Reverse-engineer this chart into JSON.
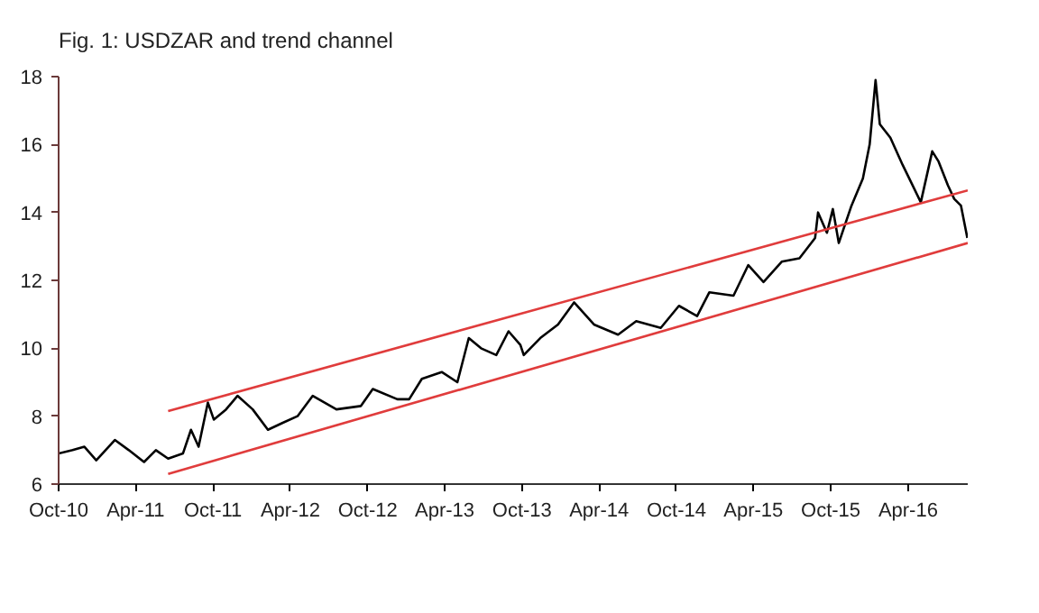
{
  "chart_data": {
    "type": "line",
    "title": "Fig. 1: USDZAR and trend channel",
    "xlim": [
      "2010-10-01",
      "2016-08-20"
    ],
    "ylim": [
      6,
      18
    ],
    "xticks": [
      {
        "value": "2010-10-01",
        "label": "Oct-10"
      },
      {
        "value": "2011-04-01",
        "label": "Apr-11"
      },
      {
        "value": "2011-10-01",
        "label": "Oct-11"
      },
      {
        "value": "2012-04-01",
        "label": "Apr-12"
      },
      {
        "value": "2012-10-01",
        "label": "Oct-12"
      },
      {
        "value": "2013-04-01",
        "label": "Apr-13"
      },
      {
        "value": "2013-10-01",
        "label": "Oct-13"
      },
      {
        "value": "2014-04-01",
        "label": "Apr-14"
      },
      {
        "value": "2014-10-01",
        "label": "Oct-14"
      },
      {
        "value": "2015-04-01",
        "label": "Apr-15"
      },
      {
        "value": "2015-10-01",
        "label": "Oct-15"
      },
      {
        "value": "2016-04-01",
        "label": "Apr-16"
      }
    ],
    "yticks": [
      6,
      8,
      10,
      12,
      14,
      16,
      18
    ],
    "grid": false,
    "marker": "none",
    "line_style": "solid",
    "series": [
      {
        "color": "#000000",
        "x": [
          "2010-10-01",
          "2010-11-03",
          "2010-12-01",
          "2010-12-29",
          "2011-02-11",
          "2011-03-16",
          "2011-04-21",
          "2011-05-19",
          "2011-06-17",
          "2011-07-22",
          "2011-08-10",
          "2011-08-28",
          "2011-09-19",
          "2011-10-03",
          "2011-11-01",
          "2011-11-28",
          "2012-01-03",
          "2012-02-08",
          "2012-03-13",
          "2012-04-18",
          "2012-05-24",
          "2012-07-19",
          "2012-09-15",
          "2012-10-13",
          "2012-12-10",
          "2013-01-07",
          "2013-02-06",
          "2013-03-25",
          "2013-05-01",
          "2013-05-28",
          "2013-06-26",
          "2013-08-01",
          "2013-08-30",
          "2013-09-27",
          "2013-10-05",
          "2013-11-13",
          "2013-12-25",
          "2014-02-01",
          "2014-03-20",
          "2014-05-16",
          "2014-06-28",
          "2014-08-25",
          "2014-10-07",
          "2014-11-19",
          "2014-12-18",
          "2015-02-13",
          "2015-03-20",
          "2015-04-25",
          "2015-06-07",
          "2015-07-19",
          "2015-08-25",
          "2015-09-01",
          "2015-09-22",
          "2015-10-06",
          "2015-10-20",
          "2015-11-19",
          "2015-12-16",
          "2016-01-01",
          "2016-01-15",
          "2016-01-25",
          "2016-02-19",
          "2016-03-19",
          "2016-05-01",
          "2016-05-28",
          "2016-06-12",
          "2016-07-04",
          "2016-07-19",
          "2016-08-04",
          "2016-08-19"
        ],
        "values": [
          6.9,
          7.0,
          7.1,
          6.7,
          7.3,
          7.0,
          6.65,
          7.0,
          6.75,
          6.9,
          7.6,
          7.1,
          8.4,
          7.9,
          8.2,
          8.6,
          8.2,
          7.6,
          7.8,
          8.0,
          8.6,
          8.2,
          8.3,
          8.8,
          8.5,
          8.5,
          9.1,
          9.3,
          9.0,
          10.3,
          10.0,
          9.8,
          10.5,
          10.1,
          9.8,
          10.3,
          10.7,
          11.35,
          10.7,
          10.4,
          10.8,
          10.6,
          11.25,
          10.95,
          11.65,
          11.55,
          12.45,
          11.95,
          12.55,
          12.65,
          13.25,
          14.0,
          13.4,
          14.1,
          13.1,
          14.2,
          15.0,
          16.0,
          17.9,
          16.6,
          16.2,
          15.4,
          14.3,
          15.8,
          15.5,
          14.8,
          14.4,
          14.2,
          13.25
        ]
      },
      {
        "color": "#e03c3c",
        "x": [
          "2011-06-17",
          "2016-08-20"
        ],
        "values": [
          8.15,
          14.65
        ]
      },
      {
        "color": "#e03c3c",
        "x": [
          "2011-06-17",
          "2016-08-20"
        ],
        "values": [
          6.3,
          13.1
        ]
      }
    ]
  }
}
